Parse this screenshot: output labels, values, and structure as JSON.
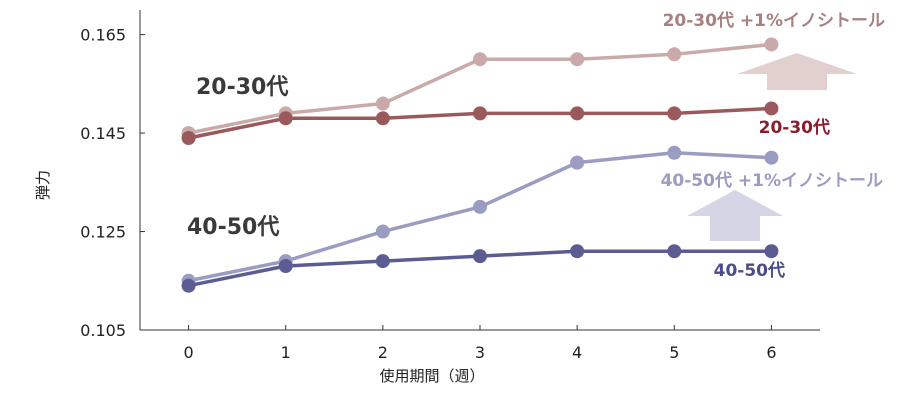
{
  "chart_data": {
    "type": "line",
    "x": [
      0,
      1,
      2,
      3,
      4,
      5,
      6
    ],
    "xlabel": "使用期間（週）",
    "ylabel": "弾力",
    "xlim": [
      -0.5,
      6.5
    ],
    "ylim": [
      0.105,
      0.17
    ],
    "yticks": [
      "0.105",
      "0.125",
      "0.145",
      "0.165"
    ],
    "grid": false,
    "series": [
      {
        "name": "20-30代 +1%イノシトール",
        "color": "#c9aaa9",
        "label_color": "#a8807f",
        "values": [
          0.145,
          0.149,
          0.151,
          0.16,
          0.16,
          0.161,
          0.163
        ]
      },
      {
        "name": "20-30代",
        "color": "#9a5a5c",
        "label_color": "#8a1c2c",
        "values": [
          0.144,
          0.148,
          0.148,
          0.149,
          0.149,
          0.149,
          0.15
        ]
      },
      {
        "name": "40-50代 +1%イノシトール",
        "color": "#9a9cc2",
        "label_color": "#9a9cc2",
        "values": [
          0.115,
          0.119,
          0.125,
          0.13,
          0.139,
          0.141,
          0.14
        ]
      },
      {
        "name": "40-50代",
        "color": "#5a5c92",
        "label_color": "#4a4c8c",
        "values": [
          0.114,
          0.118,
          0.119,
          0.12,
          0.121,
          0.121,
          0.121
        ]
      }
    ],
    "group_labels": [
      "20-30代",
      "40-50代"
    ],
    "arrow_colors": [
      "#e2d0cf",
      "#d5d5e5"
    ]
  }
}
